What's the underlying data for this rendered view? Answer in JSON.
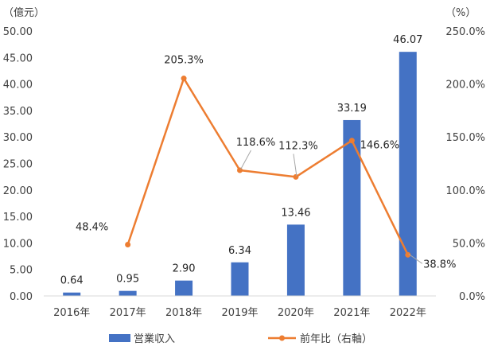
{
  "chart_data": {
    "type": "bar",
    "categories": [
      "2016年",
      "2017年",
      "2018年",
      "2019年",
      "2020年",
      "2021年",
      "2022年"
    ],
    "left_unit": "（億元）",
    "right_unit": "（%）",
    "left_ylim": [
      0,
      50
    ],
    "left_ticks": [
      "0.00",
      "5.00",
      "10.00",
      "15.00",
      "20.00",
      "25.00",
      "30.00",
      "35.00",
      "40.00",
      "45.00",
      "50.00"
    ],
    "right_ylim": [
      0,
      250
    ],
    "right_ticks": [
      "0.0%",
      "50.0%",
      "100.0%",
      "150.0%",
      "200.0%",
      "250.0%"
    ],
    "series": [
      {
        "name": "営業収入",
        "kind": "bar",
        "axis": "left",
        "color": "#4472C4",
        "values": [
          0.64,
          0.95,
          2.9,
          6.34,
          13.46,
          33.19,
          46.07
        ],
        "labels": [
          "0.64",
          "0.95",
          "2.90",
          "6.34",
          "13.46",
          "33.19",
          "46.07"
        ]
      },
      {
        "name": "前年比（右軸）",
        "kind": "line",
        "axis": "right",
        "color": "#ED7D31",
        "values": [
          null,
          48.4,
          205.3,
          118.6,
          112.3,
          146.6,
          38.8
        ],
        "labels": [
          "",
          "48.4%",
          "205.3%",
          "118.6%",
          "112.3%",
          "146.6%",
          "38.8%"
        ]
      }
    ],
    "grid": false,
    "legend_position": "bottom"
  }
}
